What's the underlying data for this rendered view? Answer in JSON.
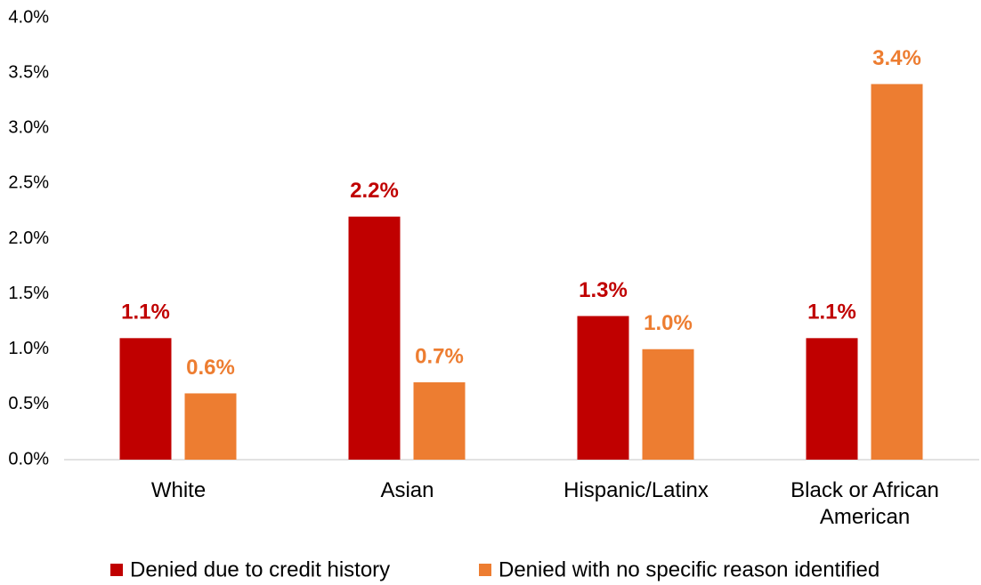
{
  "chart_data": {
    "type": "bar",
    "categories": [
      "White",
      "Asian",
      "Hispanic/Latinx",
      "Black or African American"
    ],
    "series": [
      {
        "name": "Denied due to credit history",
        "color": "#c00000",
        "values": [
          1.1,
          2.2,
          1.3,
          1.1
        ],
        "value_labels": [
          "1.1%",
          "2.2%",
          "1.3%",
          "1.1%"
        ]
      },
      {
        "name": "Denied with no specific reason identified",
        "color": "#ed7d31",
        "values": [
          0.6,
          0.7,
          1.0,
          3.4
        ],
        "value_labels": [
          "0.6%",
          "0.7%",
          "1.0%",
          "3.4%"
        ]
      }
    ],
    "ylim": [
      0,
      4
    ],
    "yticks": [
      {
        "value": 0,
        "label": "0.0%"
      },
      {
        "value": 0.5,
        "label": "0.5%"
      },
      {
        "value": 1,
        "label": "1.0%"
      },
      {
        "value": 1.5,
        "label": "1.5%"
      },
      {
        "value": 2,
        "label": "2.0%"
      },
      {
        "value": 2.5,
        "label": "2.5%"
      },
      {
        "value": 3,
        "label": "3.0%"
      },
      {
        "value": 3.5,
        "label": "3.5%"
      },
      {
        "value": 4,
        "label": "4.0%"
      }
    ],
    "grid": false,
    "legend": "bottom"
  }
}
